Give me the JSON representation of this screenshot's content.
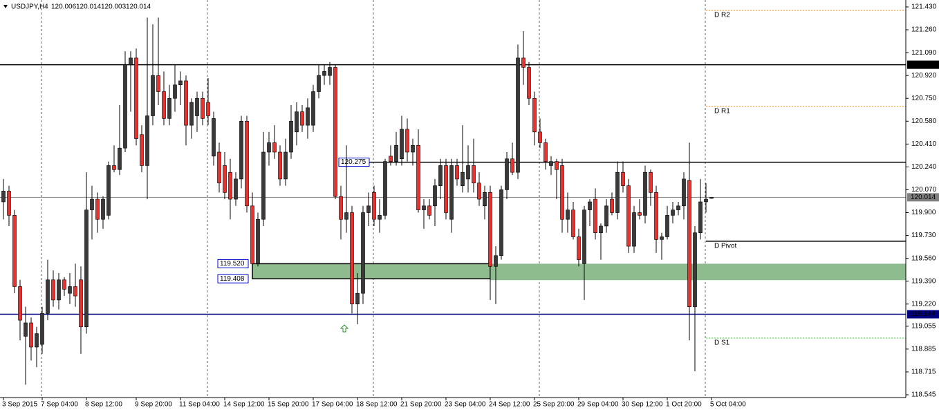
{
  "chart_data": {
    "type": "candlestick",
    "title": "USDJPY,H4",
    "up_color": "#3a3a3a",
    "down_color": "#e8322d",
    "ylim": [
      118.545,
      121.43
    ],
    "yticks": [
      {
        "value": 121.43,
        "label": "121.430"
      },
      {
        "value": 121.26,
        "label": "121.260"
      },
      {
        "value": 121.09,
        "label": "121.090"
      },
      {
        "value": 120.92,
        "label": "120.920"
      },
      {
        "value": 120.75,
        "label": "120.750"
      },
      {
        "value": 120.58,
        "label": "120.580"
      },
      {
        "value": 120.41,
        "label": "120.410"
      },
      {
        "value": 120.24,
        "label": "120.240"
      },
      {
        "value": 120.07,
        "label": "120.070"
      },
      {
        "value": 119.9,
        "label": "119.900"
      },
      {
        "value": 119.73,
        "label": "119.730"
      },
      {
        "value": 119.56,
        "label": "119.560"
      },
      {
        "value": 119.39,
        "label": "119.390"
      },
      {
        "value": 119.22,
        "label": "119.220"
      },
      {
        "value": 119.055,
        "label": "119.055"
      },
      {
        "value": 118.885,
        "label": "118.885"
      },
      {
        "value": 118.715,
        "label": "118.715"
      },
      {
        "value": 118.545,
        "label": "118.545"
      }
    ],
    "xticks": [
      {
        "value": 0,
        "label": "3 Sep 2015"
      },
      {
        "value": 7,
        "label": "7 Sep 04:00"
      },
      {
        "value": 15,
        "label": "8 Sep 12:00"
      },
      {
        "value": 24,
        "label": "9 Sep 20:00"
      },
      {
        "value": 32,
        "label": "11 Sep 04:00"
      },
      {
        "value": 40,
        "label": "14 Sep 12:00"
      },
      {
        "value": 48,
        "label": "15 Sep 20:00"
      },
      {
        "value": 56,
        "label": "17 Sep 04:00"
      },
      {
        "value": 64,
        "label": "18 Sep 12:00"
      },
      {
        "value": 72,
        "label": "21 Sep 20:00"
      },
      {
        "value": 80,
        "label": "23 Sep 04:00"
      },
      {
        "value": 88,
        "label": "24 Sep 12:00"
      },
      {
        "value": 96,
        "label": "25 Sep 20:00"
      },
      {
        "value": 104,
        "label": "29 Sep 04:00"
      },
      {
        "value": 112,
        "label": "30 Sep 12:00"
      },
      {
        "value": 120,
        "label": "1 Oct 20:00"
      },
      {
        "value": 128,
        "label": "5 Oct 04:00"
      }
    ],
    "open": [
      119.98,
      120.06,
      119.88,
      119.35,
      118.98,
      119.08,
      118.9,
      118.92,
      119.15,
      119.4,
      119.25,
      119.4,
      119.3,
      119.35,
      119.4,
      119.05,
      119.92,
      120.0,
      119.85,
      119.88,
      120.25,
      120.22,
      120.38,
      121.0,
      121.05,
      120.48,
      120.25,
      120.62,
      120.92,
      120.8,
      120.6,
      120.75,
      120.85,
      120.88,
      120.55,
      120.62,
      120.75,
      120.72,
      120.32,
      120.35,
      120.25,
      120.2,
      120.0,
      120.15,
      120.58,
      119.95,
      119.52,
      119.85,
      120.35,
      120.42,
      120.35,
      120.15,
      120.35,
      120.5,
      120.65,
      120.55,
      120.55,
      120.8,
      120.92,
      120.92,
      120.98,
      120.02,
      119.85,
      119.9,
      119.22,
      119.3,
      119.9,
      120.05,
      119.85,
      119.88,
      120.32,
      120.28,
      120.3,
      120.52,
      120.35,
      120.4,
      119.92,
      119.95,
      119.95,
      120.1,
      120.25,
      119.85,
      120.25,
      120.1,
      120.15,
      120.25,
      120.12,
      119.95,
      120.05,
      119.5,
      119.58,
      120.07,
      120.3,
      120.2,
      121.05,
      120.98,
      120.75,
      120.5,
      120.42,
      120.25,
      120.28,
      120.25,
      119.85,
      119.92,
      119.72,
      119.52,
      119.92,
      120.0,
      119.75,
      119.8,
      120.0,
      119.9,
      120.2,
      120.1,
      119.65,
      119.9,
      119.88,
      120.2,
      120.05,
      119.7,
      119.72,
      119.88,
      119.92,
      119.95,
      120.14,
      119.2,
      119.75,
      119.98,
      120.006
    ],
    "high": [
      120.15,
      120.1,
      119.92,
      119.4,
      119.2,
      119.12,
      119.05,
      119.2,
      119.55,
      119.47,
      119.45,
      119.42,
      119.45,
      119.52,
      119.5,
      120.2,
      120.1,
      120.05,
      120.02,
      120.28,
      120.4,
      120.7,
      121.1,
      121.1,
      121.12,
      120.55,
      121.35,
      121.3,
      121.35,
      120.95,
      120.85,
      121.0,
      120.95,
      120.92,
      120.75,
      120.8,
      120.8,
      120.9,
      120.65,
      120.42,
      120.35,
      120.3,
      120.2,
      120.62,
      120.62,
      120.05,
      119.9,
      120.5,
      120.5,
      120.55,
      120.4,
      120.45,
      120.7,
      120.72,
      120.7,
      120.75,
      120.85,
      121.0,
      121.0,
      121.02,
      121.0,
      120.1,
      120.4,
      119.95,
      119.45,
      119.95,
      120.05,
      120.1,
      120.0,
      120.3,
      120.4,
      120.5,
      120.62,
      120.6,
      120.45,
      120.52,
      120.0,
      120.0,
      120.15,
      120.3,
      120.3,
      120.3,
      120.3,
      120.55,
      120.4,
      120.45,
      120.2,
      120.1,
      120.1,
      119.65,
      120.1,
      120.35,
      120.42,
      121.15,
      121.25,
      121.02,
      120.8,
      120.6,
      120.45,
      120.32,
      120.3,
      120.3,
      120.05,
      119.98,
      119.78,
      119.95,
      120.0,
      120.08,
      119.82,
      120.0,
      120.05,
      120.28,
      120.28,
      120.15,
      119.95,
      120.0,
      120.25,
      120.22,
      120.1,
      119.75,
      119.95,
      119.98,
      119.98,
      120.2,
      120.42,
      119.8,
      120.15,
      120.12,
      120.014
    ],
    "low": [
      119.85,
      119.8,
      119.3,
      118.95,
      118.62,
      118.8,
      118.75,
      118.85,
      119.1,
      119.2,
      119.18,
      119.28,
      119.22,
      119.2,
      118.85,
      119.0,
      119.7,
      119.75,
      119.78,
      119.85,
      120.2,
      120.18,
      120.35,
      120.65,
      120.4,
      120.2,
      120.0,
      120.55,
      120.7,
      120.55,
      120.55,
      120.65,
      120.7,
      120.4,
      120.45,
      120.5,
      120.55,
      120.55,
      120.25,
      120.05,
      120.0,
      119.85,
      119.95,
      120.08,
      119.9,
      119.45,
      119.5,
      119.8,
      120.25,
      120.3,
      120.1,
      120.1,
      120.3,
      120.4,
      120.5,
      120.45,
      120.5,
      120.75,
      120.85,
      120.85,
      120.0,
      119.7,
      119.75,
      119.15,
      119.07,
      119.22,
      119.8,
      119.8,
      119.75,
      119.85,
      120.25,
      120.25,
      120.25,
      120.28,
      120.25,
      119.9,
      119.78,
      119.85,
      119.8,
      120.0,
      119.85,
      119.75,
      120.1,
      120.05,
      120.05,
      120.05,
      119.95,
      119.85,
      119.25,
      119.22,
      119.55,
      120.0,
      120.18,
      120.15,
      120.85,
      120.7,
      120.4,
      120.38,
      120.22,
      120.18,
      120.0,
      119.75,
      119.75,
      119.7,
      119.5,
      119.25,
      119.8,
      119.7,
      119.55,
      119.75,
      119.88,
      119.85,
      120.05,
      119.6,
      119.6,
      119.85,
      119.82,
      119.95,
      119.6,
      119.55,
      119.7,
      119.82,
      119.88,
      119.85,
      118.95,
      118.72,
      119.7,
      119.9,
      120.003
    ],
    "close": [
      120.06,
      119.88,
      119.35,
      119.1,
      119.08,
      118.9,
      119.0,
      119.15,
      119.4,
      119.25,
      119.4,
      119.33,
      119.35,
      119.28,
      119.05,
      119.92,
      120.0,
      119.85,
      120.0,
      120.25,
      120.22,
      120.38,
      121.0,
      121.05,
      120.45,
      120.25,
      120.62,
      120.92,
      120.8,
      120.6,
      120.75,
      120.85,
      120.88,
      120.55,
      120.72,
      120.75,
      120.6,
      120.62,
      120.6,
      120.12,
      120.05,
      120.0,
      120.15,
      120.58,
      119.95,
      119.52,
      119.85,
      120.35,
      120.42,
      120.35,
      120.15,
      120.35,
      120.58,
      120.65,
      120.55,
      120.68,
      120.8,
      120.92,
      120.95,
      120.98,
      120.02,
      119.85,
      119.9,
      119.22,
      119.3,
      119.9,
      119.95,
      119.85,
      119.88,
      120.28,
      120.28,
      120.4,
      120.52,
      120.35,
      120.4,
      119.92,
      119.95,
      119.88,
      120.1,
      120.25,
      119.9,
      120.25,
      120.15,
      120.2,
      120.25,
      120.12,
      120.0,
      120.05,
      119.5,
      119.58,
      120.07,
      120.3,
      120.2,
      121.05,
      120.98,
      120.75,
      120.5,
      120.42,
      120.28,
      120.28,
      120.22,
      119.85,
      119.92,
      119.72,
      119.55,
      119.92,
      119.98,
      119.75,
      119.8,
      119.95,
      119.9,
      120.2,
      120.1,
      119.65,
      119.9,
      119.88,
      120.2,
      120.05,
      119.7,
      119.72,
      119.88,
      119.92,
      119.95,
      120.15,
      119.2,
      119.75,
      119.98,
      120.0,
      120.014
    ],
    "levels": [
      {
        "value": 121.0,
        "label": "121.000",
        "color": "#000000",
        "tag": "axis",
        "from": 0
      },
      {
        "value": 120.275,
        "label": "120.275",
        "color": "#000000",
        "tag": "left",
        "from": 66
      },
      {
        "value": 120.014,
        "label": "120.014",
        "color": "#7f7f7f",
        "tag": "axis",
        "from": 0
      },
      {
        "value": 119.144,
        "label": "119.144",
        "color": "#000080",
        "tag": "axis",
        "from": 0
      }
    ],
    "zone": {
      "top": {
        "value": 119.52,
        "label": "119.520"
      },
      "bottom": {
        "value": 119.408,
        "label": "119.408"
      },
      "from": 45,
      "to": 88,
      "color": "#8fbc8f"
    },
    "pivots": [
      {
        "name": "D R2",
        "value": 121.404,
        "color": "#ff8c00",
        "style": "dotted"
      },
      {
        "name": "D R1",
        "value": 120.69,
        "color": "#ff8c00",
        "style": "dotted"
      },
      {
        "name": "D Pivot",
        "value": 119.687,
        "color": "#000000",
        "style": "solid"
      },
      {
        "name": "D S1",
        "value": 118.967,
        "color": "#32cd32",
        "style": "dotted"
      }
    ],
    "pivot_from": 127
  }
}
